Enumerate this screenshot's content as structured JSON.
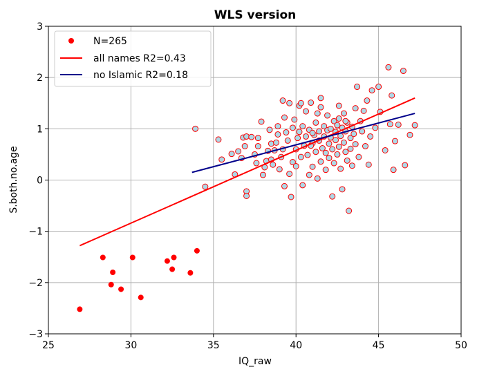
{
  "chart_data": {
    "type": "scatter",
    "title": "WLS version",
    "xlabel": "IQ_raw",
    "ylabel": "S.both.no.age",
    "xlim": [
      25,
      50
    ],
    "ylim": [
      -3,
      3
    ],
    "xticks": [
      25,
      30,
      35,
      40,
      45,
      50
    ],
    "yticks": [
      -3,
      -2,
      -1,
      0,
      1,
      2,
      3
    ],
    "xtick_labels": [
      "25",
      "30",
      "35",
      "40",
      "45",
      "50"
    ],
    "ytick_labels": [
      "−3",
      "−2",
      "−1",
      "0",
      "1",
      "2",
      "3"
    ],
    "grid": true,
    "legend_position": "top-left",
    "colors": {
      "islamic_point": "#ff0000",
      "other_point_fill": "#add8e6",
      "other_point_edge": "#ff0000",
      "all_line": "#ff0000",
      "no_islamic_line": "#00008b"
    },
    "series": [
      {
        "name": "N=265",
        "kind": "points",
        "islamic_points": [
          [
            26.9,
            -2.52
          ],
          [
            28.3,
            -1.51
          ],
          [
            28.8,
            -2.04
          ],
          [
            28.9,
            -1.8
          ],
          [
            29.4,
            -2.13
          ],
          [
            30.1,
            -1.51
          ],
          [
            30.6,
            -2.29
          ],
          [
            32.2,
            -1.58
          ],
          [
            32.5,
            -1.74
          ],
          [
            32.6,
            -1.51
          ],
          [
            33.6,
            -1.81
          ],
          [
            34.0,
            -1.38
          ]
        ],
        "other_points": [
          [
            33.9,
            1.0
          ],
          [
            34.5,
            -0.13
          ],
          [
            35.3,
            0.79
          ],
          [
            35.5,
            0.4
          ],
          [
            36.1,
            0.51
          ],
          [
            36.3,
            0.11
          ],
          [
            36.5,
            0.56
          ],
          [
            36.7,
            0.43
          ],
          [
            36.8,
            0.83
          ],
          [
            36.9,
            0.66
          ],
          [
            37.0,
            0.85
          ],
          [
            37.0,
            -0.22
          ],
          [
            37.0,
            -0.31
          ],
          [
            37.3,
            0.84
          ],
          [
            37.5,
            0.5
          ],
          [
            37.6,
            0.33
          ],
          [
            37.7,
            0.66
          ],
          [
            37.7,
            0.82
          ],
          [
            37.9,
            1.14
          ],
          [
            38.0,
            0.1
          ],
          [
            38.1,
            0.25
          ],
          [
            38.2,
            0.37
          ],
          [
            38.3,
            0.57
          ],
          [
            38.4,
            0.98
          ],
          [
            38.5,
            0.71
          ],
          [
            38.5,
            0.4
          ],
          [
            38.6,
            0.3
          ],
          [
            38.7,
            0.58
          ],
          [
            38.8,
            0.73
          ],
          [
            38.9,
            0.89
          ],
          [
            38.9,
            1.05
          ],
          [
            39.0,
            0.21
          ],
          [
            39.1,
            0.45
          ],
          [
            39.2,
            0.6
          ],
          [
            39.3,
            1.22
          ],
          [
            39.3,
            -0.12
          ],
          [
            39.4,
            0.93
          ],
          [
            39.5,
            0.77
          ],
          [
            39.6,
            1.5
          ],
          [
            39.6,
            0.12
          ],
          [
            39.7,
            -0.33
          ],
          [
            39.8,
            0.35
          ],
          [
            39.8,
            1.02
          ],
          [
            39.9,
            1.18
          ],
          [
            40.0,
            0.6
          ],
          [
            40.0,
            0.27
          ],
          [
            40.1,
            0.82
          ],
          [
            40.2,
            0.94
          ],
          [
            40.2,
            1.45
          ],
          [
            40.3,
            0.45
          ],
          [
            40.4,
            1.05
          ],
          [
            40.4,
            -0.1
          ],
          [
            40.5,
            0.67
          ],
          [
            40.6,
            0.85
          ],
          [
            40.6,
            1.34
          ],
          [
            40.7,
            0.49
          ],
          [
            40.8,
            0.1
          ],
          [
            40.8,
            0.98
          ],
          [
            40.9,
            1.51
          ],
          [
            41.0,
            0.72
          ],
          [
            41.0,
            0.26
          ],
          [
            41.1,
            0.88
          ],
          [
            41.2,
            1.12
          ],
          [
            41.2,
            0.55
          ],
          [
            41.3,
            1.3
          ],
          [
            41.3,
            0.03
          ],
          [
            41.4,
            0.77
          ],
          [
            41.4,
            0.95
          ],
          [
            41.5,
            0.36
          ],
          [
            41.5,
            1.42
          ],
          [
            41.6,
            0.62
          ],
          [
            41.7,
            0.85
          ],
          [
            41.7,
            1.05
          ],
          [
            41.8,
            0.2
          ],
          [
            41.8,
            0.53
          ],
          [
            41.9,
            0.97
          ],
          [
            41.9,
            1.26
          ],
          [
            42.0,
            0.71
          ],
          [
            42.0,
            0.43
          ],
          [
            42.1,
            0.83
          ],
          [
            42.1,
            1.0
          ],
          [
            42.2,
            0.6
          ],
          [
            42.2,
            -0.32
          ],
          [
            42.3,
            1.15
          ],
          [
            42.3,
            0.33
          ],
          [
            42.4,
            0.78
          ],
          [
            42.4,
            0.94
          ],
          [
            42.5,
            1.07
          ],
          [
            42.5,
            0.5
          ],
          [
            42.6,
            0.65
          ],
          [
            42.6,
            1.2
          ],
          [
            42.7,
            0.86
          ],
          [
            42.7,
            0.22
          ],
          [
            42.8,
            1.02
          ],
          [
            42.8,
            -0.18
          ],
          [
            42.9,
            0.73
          ],
          [
            42.9,
            1.3
          ],
          [
            43.0,
            0.55
          ],
          [
            43.0,
            0.95
          ],
          [
            43.1,
            0.38
          ],
          [
            43.1,
            1.12
          ],
          [
            43.2,
            -0.6
          ],
          [
            43.3,
            0.82
          ],
          [
            43.3,
            0.61
          ],
          [
            43.4,
            1.04
          ],
          [
            43.4,
            0.28
          ],
          [
            43.5,
            0.9
          ],
          [
            43.6,
            1.4
          ],
          [
            43.6,
            0.7
          ],
          [
            43.7,
            1.82
          ],
          [
            43.8,
            0.45
          ],
          [
            43.9,
            1.15
          ],
          [
            44.0,
            0.95
          ],
          [
            44.1,
            1.35
          ],
          [
            44.2,
            0.66
          ],
          [
            44.3,
            1.55
          ],
          [
            44.4,
            0.3
          ],
          [
            44.5,
            0.85
          ],
          [
            44.6,
            1.75
          ],
          [
            44.8,
            1.02
          ],
          [
            45.0,
            1.82
          ],
          [
            45.1,
            1.33
          ],
          [
            45.4,
            0.58
          ],
          [
            45.6,
            2.2
          ],
          [
            45.7,
            1.09
          ],
          [
            45.8,
            1.65
          ],
          [
            45.9,
            0.2
          ],
          [
            46.0,
            0.76
          ],
          [
            46.2,
            1.08
          ],
          [
            46.5,
            2.13
          ],
          [
            46.6,
            0.29
          ],
          [
            46.9,
            0.88
          ],
          [
            47.2,
            1.07
          ],
          [
            41.5,
            1.6
          ],
          [
            42.6,
            1.45
          ],
          [
            43.0,
            1.15
          ],
          [
            40.3,
            1.5
          ],
          [
            39.2,
            1.55
          ],
          [
            41.0,
            0.92
          ],
          [
            40.9,
            0.67
          ]
        ]
      }
    ],
    "lines": [
      {
        "name": "all names R2=0.43",
        "x": [
          26.9,
          47.2
        ],
        "y": [
          -1.28,
          1.6
        ]
      },
      {
        "name": "no Islamic R2=0.18",
        "x": [
          33.7,
          47.2
        ],
        "y": [
          0.15,
          1.3
        ]
      }
    ]
  }
}
